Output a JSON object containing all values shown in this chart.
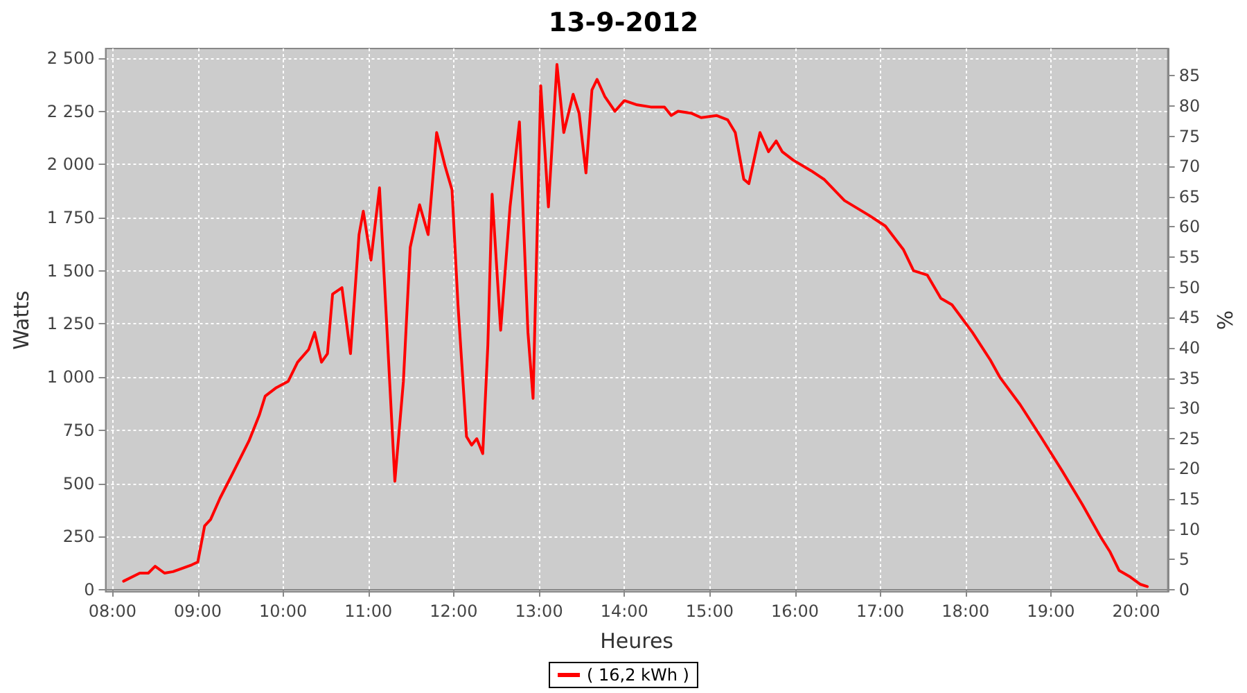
{
  "chart_data": {
    "type": "line",
    "title": "13-9-2012",
    "xlabel": "Heures",
    "ylabel": "Watts",
    "y2label": "%",
    "xlim": [
      7.92,
      20.37
    ],
    "xticks": [
      {
        "value": 8,
        "label": "08:00"
      },
      {
        "value": 9,
        "label": "09:00"
      },
      {
        "value": 10,
        "label": "10:00"
      },
      {
        "value": 11,
        "label": "11:00"
      },
      {
        "value": 12,
        "label": "12:00"
      },
      {
        "value": 13,
        "label": "13:00"
      },
      {
        "value": 14,
        "label": "14:00"
      },
      {
        "value": 15,
        "label": "15:00"
      },
      {
        "value": 16,
        "label": "16:00"
      },
      {
        "value": 17,
        "label": "17:00"
      },
      {
        "value": 18,
        "label": "18:00"
      },
      {
        "value": 19,
        "label": "19:00"
      },
      {
        "value": 20,
        "label": "20:00"
      }
    ],
    "ylim": [
      -10,
      2545
    ],
    "yticks": [
      0,
      250,
      500,
      750,
      {
        "value": 1000,
        "label": "1 000"
      },
      {
        "value": 1250,
        "label": "1 250"
      },
      {
        "value": 1500,
        "label": "1 500"
      },
      {
        "value": 1750,
        "label": "1 750"
      },
      {
        "value": 2000,
        "label": "2 000"
      },
      {
        "value": 2250,
        "label": "2 250"
      },
      {
        "value": 2500,
        "label": "2 500"
      }
    ],
    "y2lim": [
      -0.35,
      89.5
    ],
    "y2ticks": [
      0,
      5,
      10,
      15,
      20,
      25,
      30,
      35,
      40,
      45,
      50,
      55,
      60,
      65,
      70,
      75,
      80,
      85
    ],
    "grid": true,
    "legend": "bottom",
    "marker": "none",
    "line_style": "solid",
    "series": [
      {
        "name": "( 16,2 kWh )",
        "color": "#ff0000",
        "x": [
          8.13,
          8.32,
          8.42,
          8.5,
          8.61,
          8.71,
          8.84,
          8.93,
          9.0,
          9.08,
          9.15,
          9.26,
          9.4,
          9.6,
          9.72,
          9.79,
          9.92,
          10.06,
          10.17,
          10.3,
          10.37,
          10.45,
          10.52,
          10.58,
          10.69,
          10.79,
          10.89,
          10.94,
          11.03,
          11.13,
          11.21,
          11.31,
          11.41,
          11.49,
          11.6,
          11.7,
          11.8,
          11.9,
          11.98,
          12.05,
          12.15,
          12.21,
          12.27,
          12.34,
          12.4,
          12.45,
          12.55,
          12.66,
          12.77,
          12.87,
          12.93,
          13.02,
          13.11,
          13.21,
          13.29,
          13.4,
          13.47,
          13.55,
          13.62,
          13.68,
          13.77,
          13.89,
          14.0,
          14.15,
          14.31,
          14.47,
          14.55,
          14.63,
          14.79,
          14.9,
          15.08,
          15.21,
          15.3,
          15.4,
          15.46,
          15.59,
          15.69,
          15.78,
          15.85,
          15.98,
          16.19,
          16.34,
          16.58,
          16.87,
          17.06,
          17.27,
          17.39,
          17.55,
          17.71,
          17.84,
          18.08,
          18.29,
          18.4,
          18.64,
          18.88,
          19.13,
          19.37,
          19.58,
          19.69,
          19.8,
          19.93,
          20.05,
          20.13
        ],
        "values": [
          40,
          78,
          78,
          110,
          78,
          85,
          104,
          117,
          130,
          300,
          330,
          430,
          540,
          700,
          820,
          910,
          950,
          980,
          1070,
          1130,
          1210,
          1070,
          1110,
          1390,
          1420,
          1110,
          1670,
          1780,
          1550,
          1890,
          1280,
          510,
          980,
          1610,
          1810,
          1670,
          2150,
          1990,
          1880,
          1340,
          720,
          680,
          710,
          640,
          1150,
          1860,
          1220,
          1800,
          2200,
          1210,
          900,
          2370,
          1800,
          2470,
          2150,
          2330,
          2240,
          1960,
          2350,
          2400,
          2320,
          2250,
          2300,
          2280,
          2270,
          2270,
          2230,
          2250,
          2240,
          2220,
          2230,
          2210,
          2150,
          1930,
          1910,
          2150,
          2060,
          2110,
          2060,
          2020,
          1970,
          1930,
          1830,
          1760,
          1710,
          1600,
          1500,
          1480,
          1370,
          1340,
          1210,
          1080,
          1000,
          870,
          720,
          560,
          400,
          250,
          180,
          90,
          60,
          25,
          15
        ]
      }
    ]
  }
}
